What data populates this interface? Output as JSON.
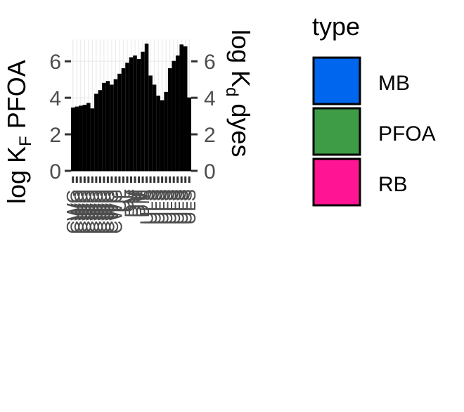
{
  "chart_data": {
    "type": "bar",
    "title": "",
    "xlabel": "",
    "ylabel_left": {
      "main": "log K",
      "sub": "F",
      "rest": " PFOA"
    },
    "ylabel_right": {
      "main": "log K",
      "sub": "d",
      "rest": " dyes"
    },
    "ylim": [
      0,
      7.2
    ],
    "y_ticks": [
      0,
      2,
      4,
      6
    ],
    "grid": true,
    "legend_position": "right",
    "legend": {
      "title": "type",
      "entries": [
        {
          "name": "MB",
          "color": "#0066EE"
        },
        {
          "name": "PFOA",
          "color": "#3E9B46"
        },
        {
          "name": "RB",
          "color": "#FF1493"
        }
      ]
    },
    "categories": [
      "CWG",
      "CWG",
      "CWG",
      "CWG",
      "CWG",
      "CWG",
      "CWG",
      "CWG",
      "CWG",
      "CWG",
      "CWG",
      "CWG",
      "UL",
      "UL",
      "UL",
      "DM",
      "DM",
      "DM",
      "DM",
      "ULS",
      "ULS",
      "ULS",
      "ULS",
      "ULS",
      "ULS",
      "ULS",
      "ULS",
      "ULS",
      "ULS",
      "ULS",
      "ULS"
    ],
    "values": [
      3.45,
      3.5,
      3.55,
      3.6,
      3.7,
      3.4,
      4.2,
      4.4,
      4.8,
      4.9,
      4.7,
      5.0,
      5.3,
      5.6,
      5.9,
      6.2,
      6.3,
      6.1,
      6.5,
      6.95,
      5.2,
      4.7,
      4.1,
      3.85,
      4.3,
      5.6,
      6.0,
      6.3,
      6.9,
      6.8,
      4.0
    ]
  }
}
